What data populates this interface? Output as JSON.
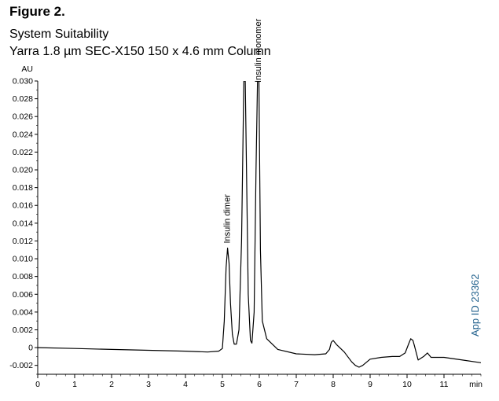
{
  "figure": {
    "label": "Figure 2.",
    "subtitle": "System Suitability",
    "column": "Yarra 1.8 µm SEC-X150 150 x 4.6 mm Column",
    "app_id": "App ID 23362"
  },
  "chart_data": {
    "type": "line",
    "ylabel": "AU",
    "xlabel": "min",
    "xlim": [
      0,
      12
    ],
    "ylim": [
      -0.003,
      0.03
    ],
    "x_ticks": [
      0,
      1,
      2,
      3,
      4,
      5,
      6,
      7,
      8,
      9,
      10,
      11
    ],
    "y_ticks": [
      {
        "value": 0.03,
        "label": "0.030"
      },
      {
        "value": 0.028,
        "label": "0.028"
      },
      {
        "value": 0.026,
        "label": "0.026"
      },
      {
        "value": 0.024,
        "label": "0.024"
      },
      {
        "value": 0.022,
        "label": "0.022"
      },
      {
        "value": 0.02,
        "label": "0.020"
      },
      {
        "value": 0.018,
        "label": "0.018"
      },
      {
        "value": 0.016,
        "label": "0.016"
      },
      {
        "value": 0.014,
        "label": "0.014"
      },
      {
        "value": 0.012,
        "label": "0.012"
      },
      {
        "value": 0.01,
        "label": "0.010"
      },
      {
        "value": 0.008,
        "label": "0.008"
      },
      {
        "value": 0.006,
        "label": "0.006"
      },
      {
        "value": 0.004,
        "label": "0.004"
      },
      {
        "value": 0.002,
        "label": "0.002"
      },
      {
        "value": 0,
        "label": "0"
      },
      {
        "value": -0.002,
        "label": "-0.002"
      }
    ],
    "grid": false,
    "series": [
      {
        "color": "#000000",
        "points": [
          [
            0.0,
            0.0
          ],
          [
            1.0,
            -0.0001
          ],
          [
            2.0,
            -0.0002
          ],
          [
            3.0,
            -0.0003
          ],
          [
            4.0,
            -0.0004
          ],
          [
            4.6,
            -0.0005
          ],
          [
            4.9,
            -0.0004
          ],
          [
            5.0,
            -0.0001
          ],
          [
            5.05,
            0.003
          ],
          [
            5.1,
            0.009
          ],
          [
            5.14,
            0.0112
          ],
          [
            5.18,
            0.0095
          ],
          [
            5.22,
            0.005
          ],
          [
            5.27,
            0.0015
          ],
          [
            5.32,
            0.0004
          ],
          [
            5.38,
            0.0004
          ],
          [
            5.45,
            0.002
          ],
          [
            5.52,
            0.012
          ],
          [
            5.58,
            0.03
          ],
          [
            5.62,
            0.03
          ],
          [
            5.7,
            0.006
          ],
          [
            5.76,
            0.0008
          ],
          [
            5.8,
            0.0005
          ],
          [
            5.86,
            0.004
          ],
          [
            5.91,
            0.02
          ],
          [
            5.95,
            0.03
          ],
          [
            5.99,
            0.03
          ],
          [
            6.03,
            0.011
          ],
          [
            6.08,
            0.003
          ],
          [
            6.2,
            0.001
          ],
          [
            6.5,
            -0.0002
          ],
          [
            7.0,
            -0.0007
          ],
          [
            7.5,
            -0.0008
          ],
          [
            7.8,
            -0.0007
          ],
          [
            7.9,
            -0.0002
          ],
          [
            7.95,
            0.0006
          ],
          [
            8.0,
            0.0008
          ],
          [
            8.1,
            0.0003
          ],
          [
            8.3,
            -0.0005
          ],
          [
            8.5,
            -0.0016
          ],
          [
            8.6,
            -0.002
          ],
          [
            8.7,
            -0.0022
          ],
          [
            8.8,
            -0.002
          ],
          [
            9.0,
            -0.0013
          ],
          [
            9.3,
            -0.0011
          ],
          [
            9.6,
            -0.001
          ],
          [
            9.8,
            -0.001
          ],
          [
            9.95,
            -0.0006
          ],
          [
            10.05,
            0.0005
          ],
          [
            10.1,
            0.001
          ],
          [
            10.16,
            0.0008
          ],
          [
            10.2,
            0.0002
          ],
          [
            10.3,
            -0.0014
          ],
          [
            10.45,
            -0.001
          ],
          [
            10.55,
            -0.0006
          ],
          [
            10.65,
            -0.0011
          ],
          [
            11.0,
            -0.0011
          ],
          [
            11.5,
            -0.0014
          ],
          [
            12.0,
            -0.0017
          ]
        ]
      }
    ],
    "annotations": [
      {
        "text": "Insulin dimer",
        "x": 5.14,
        "y": 0.0112
      },
      {
        "text": "Insulin monomer",
        "x": 5.98,
        "y": 0.03
      }
    ]
  }
}
